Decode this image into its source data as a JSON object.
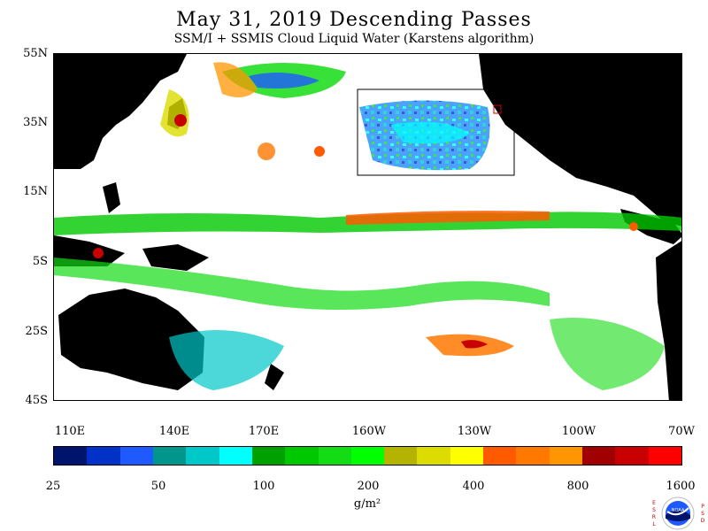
{
  "title": "May 31, 2019  Descending Passes",
  "subtitle": "SSM/I + SSMIS Cloud Liquid Water (Karstens algorithm)",
  "lat_labels": [
    "55N",
    "35N",
    "15N",
    "5S",
    "25S",
    "45S"
  ],
  "lon_labels": [
    "110E",
    "140E",
    "170E",
    "160W",
    "130W",
    "100W",
    "70W"
  ],
  "colorbar": {
    "colors": [
      "#00146e",
      "#0032c8",
      "#1e5aff",
      "#00968c",
      "#00c8c8",
      "#00ffff",
      "#00a000",
      "#00c800",
      "#14dc14",
      "#00ff00",
      "#b4b400",
      "#dcdc00",
      "#ffff00",
      "#ff5a00",
      "#ff7800",
      "#ff9600",
      "#a00000",
      "#c80000",
      "#ff0000"
    ],
    "tick_labels": [
      "25",
      "50",
      "100",
      "200",
      "400",
      "800",
      "1600"
    ],
    "units": "g/m²"
  },
  "logo": {
    "left_letters": "ESRL",
    "right_letters": "PSD",
    "center_text": "NOAA"
  }
}
